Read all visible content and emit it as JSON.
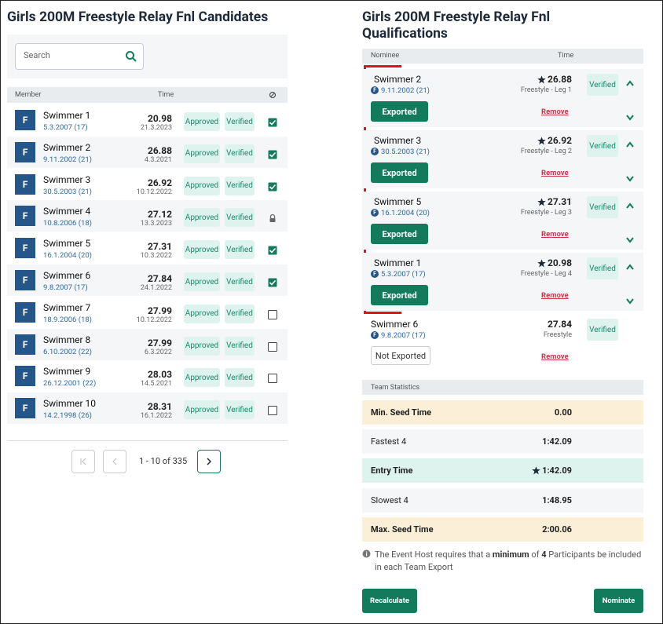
{
  "left": {
    "title": "Girls 200M Freestyle Relay Fnl Candidates",
    "search_placeholder": "Search",
    "table": {
      "headers": [
        "Member",
        "Time"
      ],
      "rows": [
        {
          "badge": "F",
          "name": "Swimmer 1",
          "dob": "5.3.2007 (17)",
          "time": "20.98",
          "date": "21.3.2023",
          "status": "Approved",
          "verification": "Verified",
          "selection": "checked"
        },
        {
          "badge": "F",
          "name": "Swimmer 2",
          "dob": "9.11.2002 (21)",
          "time": "26.88",
          "date": "4.3.2021",
          "status": "Approved",
          "verification": "Verified",
          "selection": "checked"
        },
        {
          "badge": "F",
          "name": "Swimmer 3",
          "dob": "30.5.2003 (21)",
          "time": "26.92",
          "date": "10.12.2022",
          "status": "Approved",
          "verification": "Verified",
          "selection": "checked"
        },
        {
          "badge": "F",
          "name": "Swimmer 4",
          "dob": "10.8.2006 (18)",
          "time": "27.12",
          "date": "13.3.2023",
          "status": "Approved",
          "verification": "Verified",
          "selection": "locked"
        },
        {
          "badge": "F",
          "name": "Swimmer 5",
          "dob": "16.1.2004 (20)",
          "time": "27.31",
          "date": "10.3.2022",
          "status": "Approved",
          "verification": "Verified",
          "selection": "checked"
        },
        {
          "badge": "F",
          "name": "Swimmer 6",
          "dob": "9.8.2007 (17)",
          "time": "27.84",
          "date": "24.1.2022",
          "status": "Approved",
          "verification": "Verified",
          "selection": "checked"
        },
        {
          "badge": "F",
          "name": "Swimmer 7",
          "dob": "18.9.2006 (18)",
          "time": "27.99",
          "date": "10.12.2022",
          "status": "Approved",
          "verification": "Verified",
          "selection": "unchecked"
        },
        {
          "badge": "F",
          "name": "Swimmer 8",
          "dob": "6.10.2002 (22)",
          "time": "27.99",
          "date": "6.3.2022",
          "status": "Approved",
          "verification": "Verified",
          "selection": "unchecked"
        },
        {
          "badge": "F",
          "name": "Swimmer 9",
          "dob": "26.12.2001 (22)",
          "time": "28.03",
          "date": "14.5.2021",
          "status": "Approved",
          "verification": "Verified",
          "selection": "unchecked"
        },
        {
          "badge": "F",
          "name": "Swimmer 10",
          "dob": "14.2.1998 (26)",
          "time": "28.31",
          "date": "16.1.2022",
          "status": "Approved",
          "verification": "Verified",
          "selection": "unchecked"
        }
      ]
    },
    "pagination": {
      "range": "1 - 10 of 335"
    }
  },
  "right": {
    "title": "Girls 200M Freestyle Relay Fnl Qualifications",
    "headers": [
      "Nominee",
      "Time"
    ],
    "nominees": [
      {
        "name": "Swimmer 2",
        "badge": "F",
        "dob": "9.11.2002 (21)",
        "time": "26.88",
        "event": "Freestyle - Leg 1",
        "verification": "Verified",
        "export": "Exported",
        "action": "Remove",
        "starred": true,
        "reorderable": true
      },
      {
        "name": "Swimmer 3",
        "badge": "F",
        "dob": "30.5.2003 (21)",
        "time": "26.92",
        "event": "Freestyle - Leg 2",
        "verification": "Verified",
        "export": "Exported",
        "action": "Remove",
        "starred": true,
        "reorderable": true
      },
      {
        "name": "Swimmer 5",
        "badge": "F",
        "dob": "16.1.2004 (20)",
        "time": "27.31",
        "event": "Freestyle - Leg 3",
        "verification": "Verified",
        "export": "Exported",
        "action": "Remove",
        "starred": true,
        "reorderable": true
      },
      {
        "name": "Swimmer 1",
        "badge": "F",
        "dob": "5.3.2007 (17)",
        "time": "20.98",
        "event": "Freestyle - Leg 4",
        "verification": "Verified",
        "export": "Exported",
        "action": "Remove",
        "starred": true,
        "reorderable": true
      },
      {
        "name": "Swimmer 6",
        "badge": "F",
        "dob": "9.8.2007 (17)",
        "time": "27.84",
        "event": "Freestyle",
        "verification": "Verified",
        "export": "Not Exported",
        "action": "Remove",
        "starred": false,
        "reorderable": false
      }
    ],
    "team_statistics": {
      "title": "Team Statistics",
      "rows": [
        {
          "label": "Min. Seed Time",
          "value": "0.00",
          "style": "warn",
          "starred": false
        },
        {
          "label": "Fastest 4",
          "value": "1:42.09",
          "style": "plain",
          "starred": false
        },
        {
          "label": "Entry Time",
          "value": "1:42.09",
          "style": "highlight",
          "starred": true
        },
        {
          "label": "Slowest 4",
          "value": "1:48.95",
          "style": "plain",
          "starred": false
        },
        {
          "label": "Max. Seed Time",
          "value": "2:00.06",
          "style": "warn",
          "starred": false
        }
      ]
    },
    "note": [
      "The Event Host requires that a ",
      "minimum",
      " of ",
      "4",
      " Participants be included in each Team Export"
    ],
    "buttons": [
      "Recalculate",
      "Nominate"
    ]
  }
}
